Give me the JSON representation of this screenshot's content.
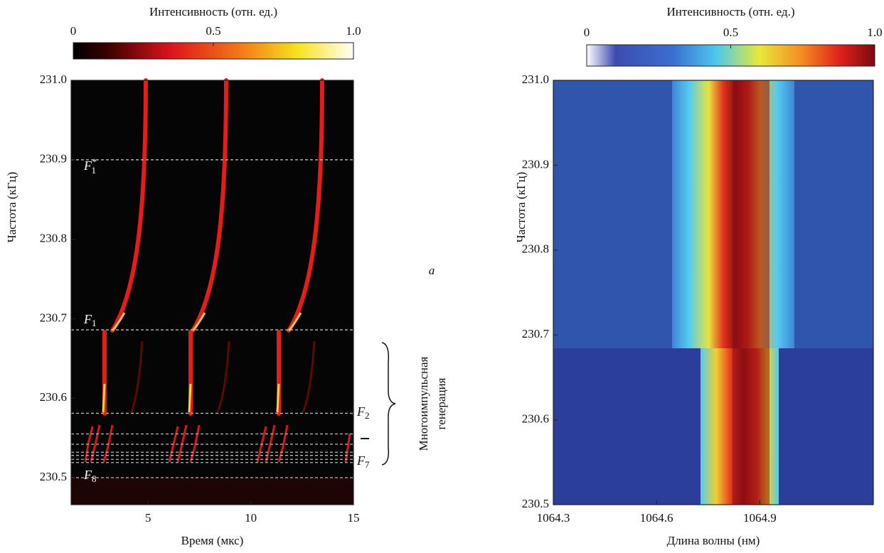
{
  "chart_data": [
    {
      "type": "heatmap",
      "colormap": "hot",
      "xlabel": "Время (мкс)",
      "ylabel": "Частота (кГц)",
      "xlim": [
        1.25,
        15
      ],
      "xticks": [
        5,
        10,
        15
      ],
      "ylim": [
        230.466,
        231.0
      ],
      "yticks": [
        {
          "value": 230.5,
          "label": "230.5"
        },
        {
          "value": 230.6,
          "label": "230.6"
        },
        {
          "value": 230.7,
          "label": "230.7"
        },
        {
          "value": 230.8,
          "label": "230.8"
        },
        {
          "value": 230.9,
          "label": "230.9"
        },
        {
          "value": 231.0,
          "label": "231.0"
        }
      ],
      "colorbar": {
        "label": "Интенсивность (отн. ед.)",
        "lim": [
          0,
          1
        ],
        "ticks": [
          0,
          0.5,
          {
            "value": 1.0,
            "label": "1.0"
          }
        ]
      },
      "levels": [
        {
          "value": 230.9,
          "label": {
            "text": "F",
            "sub": "1",
            "sup": "*"
          }
        },
        {
          "value": 230.686,
          "label": {
            "text": "F",
            "sub": "1"
          }
        },
        {
          "value": 230.581,
          "label": {
            "text": "F",
            "sub": "2"
          }
        },
        {
          "value": 230.555
        },
        {
          "value": 230.542
        },
        {
          "value": 230.532
        },
        {
          "value": 230.528
        },
        {
          "value": 230.523
        },
        {
          "value": 230.519,
          "label": {
            "text": "F",
            "sub": "7"
          }
        },
        {
          "value": 230.5,
          "label": {
            "text": "F",
            "sub": "8"
          }
        }
      ],
      "panel_label": "a",
      "bracket_text": [
        "Многоимпульсная",
        "генерация"
      ]
    },
    {
      "type": "heatmap",
      "colormap": "jet",
      "xlabel": "Длина волны (нм)",
      "ylabel": "Частота (кГц)",
      "xlim": [
        1064.3,
        1065.23
      ],
      "xticks": [
        1064.3,
        1064.6,
        1064.9
      ],
      "ylim": [
        230.5,
        231.0
      ],
      "yticks": [
        {
          "value": 230.5,
          "label": "230.5"
        },
        {
          "value": 230.6,
          "label": "230.6"
        },
        {
          "value": 230.7,
          "label": "230.7"
        },
        {
          "value": 230.8,
          "label": "230.8"
        },
        {
          "value": 230.9,
          "label": "230.9"
        },
        {
          "value": 231.0,
          "label": "231.0"
        }
      ],
      "colorbar": {
        "label": "Интенсивность (отн. ед.)",
        "lim": [
          0,
          1
        ],
        "ticks": [
          0,
          0.5,
          {
            "value": 1.0,
            "label": "1.0"
          }
        ]
      }
    }
  ]
}
